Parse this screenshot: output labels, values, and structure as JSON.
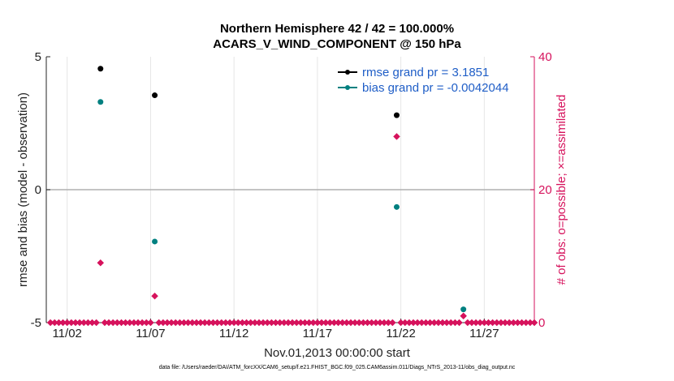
{
  "chart_data": {
    "type": "scatter",
    "title_lines": [
      "Northern Hemisphere 42 / 42 = 100.000%",
      "ACARS_V_WIND_COMPONENT @ 150 hPa"
    ],
    "xlabel": "Nov.01,2013 00:00:00 start",
    "ylabel_left": "rmse and bias (model - observation)",
    "ylabel_right": "# of obs: o=possible; ×=assimilated",
    "ylim_left": [
      -5,
      5
    ],
    "ylim_right": [
      0,
      40
    ],
    "xlim": [
      0.75,
      30.0
    ],
    "left_ticks": [
      "-5",
      "0",
      "5"
    ],
    "right_ticks": [
      "0",
      "20",
      "40"
    ],
    "x_ticks": [
      {
        "label": "11/02",
        "day": 2.0
      },
      {
        "label": "11/07",
        "day": 7.0
      },
      {
        "label": "11/12",
        "day": 12.0
      },
      {
        "label": "11/17",
        "day": 17.0
      },
      {
        "label": "11/22",
        "day": 22.0
      },
      {
        "label": "11/27",
        "day": 27.0
      }
    ],
    "series": [
      {
        "name": "rmse grand pr = 3.1851",
        "color": "#000000",
        "points": [
          {
            "day": 4.0,
            "value": 4.55
          },
          {
            "day": 7.25,
            "value": 3.55
          },
          {
            "day": 21.75,
            "value": 2.8
          }
        ]
      },
      {
        "name": "bias grand pr = -0.0042044",
        "color": "#008080",
        "points": [
          {
            "day": 4.0,
            "value": 3.3
          },
          {
            "day": 7.25,
            "value": -1.95
          },
          {
            "day": 21.75,
            "value": -0.65
          },
          {
            "day": 25.75,
            "value": -4.5
          }
        ]
      }
    ],
    "obs_counts": {
      "color": "#d6125c",
      "start_day": 1.0,
      "step": 0.25,
      "nonzero": [
        {
          "day": 4.0,
          "count": 9
        },
        {
          "day": 7.25,
          "count": 4
        },
        {
          "day": 21.75,
          "count": 28
        },
        {
          "day": 25.75,
          "count": 1
        }
      ],
      "end_day": 30.0
    },
    "zero_line": 0
  },
  "footer": "data file: /Users/raeder/DAI/ATM_forcXX/CAM6_setup/f.e21.FHIST_BGC.f09_025.CAM6assim.011/Diags_NTrS_2013-11/obs_diag_output.nc"
}
